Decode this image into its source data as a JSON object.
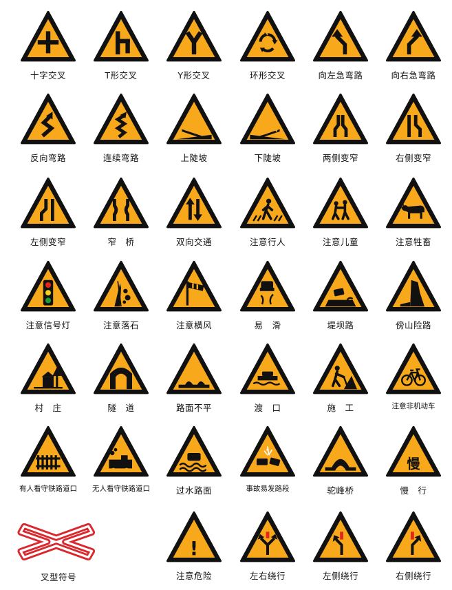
{
  "signs": [
    {
      "icon": "crossroad-icon",
      "label": "十字交叉"
    },
    {
      "icon": "t-junction-icon",
      "label": "T形交叉"
    },
    {
      "icon": "y-junction-icon",
      "label": "Y形交叉"
    },
    {
      "icon": "roundabout-icon",
      "label": "环形交叉"
    },
    {
      "icon": "sharp-left-curve-icon",
      "label": "向左急弯路"
    },
    {
      "icon": "sharp-right-curve-icon",
      "label": "向右急弯路"
    },
    {
      "icon": "reverse-curve-icon",
      "label": "反向弯路"
    },
    {
      "icon": "winding-road-icon",
      "label": "连续弯路"
    },
    {
      "icon": "steep-ascent-icon",
      "label": "上陡坡"
    },
    {
      "icon": "steep-descent-icon",
      "label": "下陡坡"
    },
    {
      "icon": "road-narrows-both-icon",
      "label": "两侧变窄"
    },
    {
      "icon": "road-narrows-right-icon",
      "label": "右侧变窄"
    },
    {
      "icon": "road-narrows-left-icon",
      "label": "左侧变窄"
    },
    {
      "icon": "narrow-bridge-icon",
      "label": "窄　桥"
    },
    {
      "icon": "two-way-traffic-icon",
      "label": "双向交通"
    },
    {
      "icon": "pedestrian-icon",
      "label": "注意行人"
    },
    {
      "icon": "children-icon",
      "label": "注意儿童"
    },
    {
      "icon": "livestock-icon",
      "label": "注意牲畜"
    },
    {
      "icon": "traffic-light-icon",
      "label": "注意信号灯"
    },
    {
      "icon": "falling-rocks-icon",
      "label": "注意落石"
    },
    {
      "icon": "crosswind-icon",
      "label": "注意横风"
    },
    {
      "icon": "slippery-road-icon",
      "label": "易　滑"
    },
    {
      "icon": "embankment-road-icon",
      "label": "堤坝路"
    },
    {
      "icon": "mountain-road-icon",
      "label": "傍山险路"
    },
    {
      "icon": "village-icon",
      "label": "村　庄"
    },
    {
      "icon": "tunnel-icon",
      "label": "隧　道"
    },
    {
      "icon": "uneven-road-icon",
      "label": "路面不平"
    },
    {
      "icon": "ferry-icon",
      "label": "渡　口"
    },
    {
      "icon": "road-works-icon",
      "label": "施　工"
    },
    {
      "icon": "bicycle-icon",
      "label": "注意非机动车"
    },
    {
      "icon": "guarded-railway-crossing-icon",
      "label": "有人看守铁路道口"
    },
    {
      "icon": "unguarded-railway-crossing-icon",
      "label": "无人看守铁路道口"
    },
    {
      "icon": "ford-icon",
      "label": "过水路面"
    },
    {
      "icon": "accident-prone-icon",
      "label": "事故易发路段"
    },
    {
      "icon": "hump-bridge-icon",
      "label": "驼峰桥"
    },
    {
      "icon": "slow-icon",
      "label": "慢　行",
      "glyph": "慢"
    },
    {
      "icon": "cross-symbol-icon",
      "label": "叉型符号"
    },
    {
      "icon": "danger-icon",
      "label": "注意危险",
      "glyph": "!"
    },
    {
      "icon": "keep-left-or-right-icon",
      "label": "左右绕行"
    },
    {
      "icon": "keep-left-icon",
      "label": "左侧绕行"
    },
    {
      "icon": "keep-right-icon",
      "label": "右侧绕行"
    }
  ],
  "colors": {
    "sign_fill": "#F7A81B",
    "sign_border": "#111111",
    "cross_red": "#D9292E"
  }
}
